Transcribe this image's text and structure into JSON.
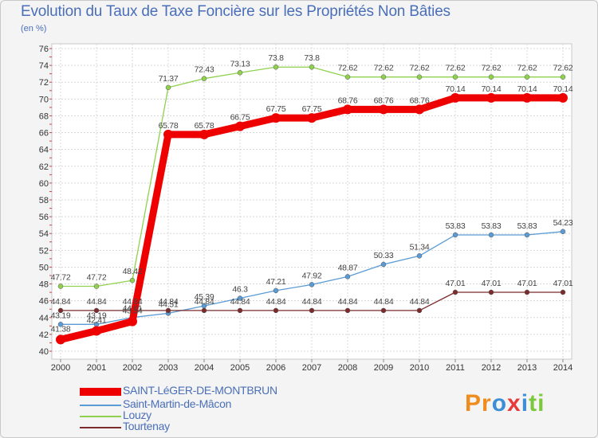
{
  "title": "Evolution du Taux de Taxe Foncière sur les Propriétés Non Bâties",
  "unit_label": "(en %)",
  "logo": {
    "text": "Proxiti",
    "letters": [
      "P",
      "r",
      "o",
      "x",
      "i",
      "t",
      "i"
    ],
    "colors": [
      "#f08c1e",
      "#f08c1e",
      "#3c8fd6",
      "#e83a3a",
      "#3c8fd6",
      "#7cc83c",
      "#7cc83c"
    ]
  },
  "chart_data": {
    "type": "line",
    "title": "Evolution du Taux de Taxe Foncière sur les Propriétés Non Bâties",
    "ylabel": "(en %)",
    "xlabel": "",
    "ylim": [
      40,
      76
    ],
    "yticks": [
      "40",
      "42",
      "44",
      "46",
      "48",
      "50",
      "52",
      "54",
      "56",
      "58",
      "60",
      "62",
      "64",
      "66",
      "68",
      "70",
      "72",
      "74",
      "76"
    ],
    "x": [
      "2000",
      "2001",
      "2002",
      "2003",
      "2004",
      "2005",
      "2006",
      "2007",
      "2008",
      "2009",
      "2010",
      "2011",
      "2012",
      "2013",
      "2014"
    ],
    "grid": true,
    "series": [
      {
        "name": "SAINT-LéGER-DE-MONTBRUN",
        "color": "#ee0000",
        "values": [
          41.38,
          42.41,
          43.54,
          65.78,
          65.78,
          66.75,
          67.75,
          67.75,
          68.76,
          68.76,
          68.76,
          70.14,
          70.14,
          70.14,
          70.14
        ],
        "labels": [
          "41.38",
          "42.41",
          "43.54",
          "65.78",
          "65.78",
          "66.75",
          "67.75",
          "67.75",
          "68.76",
          "68.76",
          "68.76",
          "70.14",
          "70.14",
          "70.14",
          "70.14"
        ]
      },
      {
        "name": "Saint-Martin-de-Mâcon",
        "color": "#5b9bd5",
        "values": [
          43.19,
          43.19,
          44.01,
          44.51,
          45.39,
          46.3,
          47.21,
          47.92,
          48.87,
          50.33,
          51.34,
          53.83,
          53.83,
          53.83,
          54.23
        ],
        "labels": [
          "43.19",
          "43.19",
          "44.01",
          "44.51",
          "45.39",
          "46.3",
          "47.21",
          "47.92",
          "48.87",
          "50.33",
          "51.34",
          "53.83",
          "53.83",
          "53.83",
          "54.23"
        ]
      },
      {
        "name": "Louzy",
        "color": "#8fd14f",
        "values": [
          47.72,
          47.72,
          48.42,
          71.37,
          72.43,
          73.13,
          73.8,
          73.8,
          72.62,
          72.62,
          72.62,
          72.62,
          72.62,
          72.62,
          72.62
        ],
        "labels": [
          "47.72",
          "47.72",
          "48.42",
          "71.37",
          "72.43",
          "73.13",
          "73.8",
          "73.8",
          "72.62",
          "72.62",
          "72.62",
          "72.62",
          "72.62",
          "72.62",
          "72.62"
        ]
      },
      {
        "name": "Tourtenay",
        "color": "#7b2b2b",
        "values": [
          44.84,
          44.84,
          44.84,
          44.84,
          44.84,
          44.84,
          44.84,
          44.84,
          44.84,
          44.84,
          44.84,
          47.01,
          47.01,
          47.01,
          47.01
        ],
        "labels": [
          "44.84",
          "44.84",
          "44.84",
          "44.84",
          "44.84",
          "44.84",
          "44.84",
          "44.84",
          "44.84",
          "44.84",
          "44.84",
          "47.01",
          "47.01",
          "47.01",
          "47.01"
        ]
      }
    ]
  },
  "legend": [
    {
      "label": "SAINT-LéGER-DE-MONTBRUN",
      "color": "#ee0000"
    },
    {
      "label": "Saint-Martin-de-Mâcon",
      "color": "#5b9bd5"
    },
    {
      "label": "Louzy",
      "color": "#8fd14f"
    },
    {
      "label": "Tourtenay",
      "color": "#7b2b2b"
    }
  ]
}
